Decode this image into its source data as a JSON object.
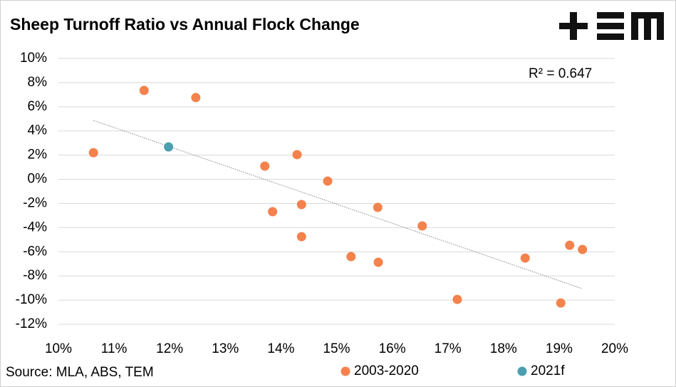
{
  "chart_data": {
    "type": "scatter",
    "title": "Sheep Turnoff Ratio vs Annual Flock Change",
    "source": "Source: MLA, ABS, TEM",
    "annotation": "R² = 0.647",
    "series": [
      {
        "name": "2003-2020",
        "color": "#f4824c",
        "x": [
          10.63,
          11.54,
          12.47,
          13.71,
          14.29,
          14.84,
          13.85,
          14.37,
          14.37,
          15.74,
          16.54,
          15.26,
          15.75,
          17.17,
          18.39,
          19.19,
          19.42,
          19.03
        ],
        "values": [
          2.2,
          7.35,
          6.76,
          1.09,
          2.04,
          -0.15,
          -2.68,
          -2.09,
          -4.75,
          -2.33,
          -3.86,
          -6.4,
          -6.87,
          -9.94,
          -6.52,
          -5.46,
          -5.81,
          -10.24
        ]
      },
      {
        "name": "2021f",
        "color": "#4b9fae",
        "x": [
          11.98
        ],
        "values": [
          2.68
        ]
      }
    ],
    "trendline": {
      "x": [
        10.63,
        19.42
      ],
      "y": [
        4.87,
        -9.06
      ],
      "color": "#888888"
    },
    "xlim": [
      10,
      20
    ],
    "xticks": [
      {
        "value": 10,
        "label": "10%"
      },
      {
        "value": 11,
        "label": "11%"
      },
      {
        "value": 12,
        "label": "12%"
      },
      {
        "value": 13,
        "label": "13%"
      },
      {
        "value": 14,
        "label": "14%"
      },
      {
        "value": 15,
        "label": "15%"
      },
      {
        "value": 16,
        "label": "16%"
      },
      {
        "value": 17,
        "label": "17%"
      },
      {
        "value": 18,
        "label": "18%"
      },
      {
        "value": 19,
        "label": "19%"
      },
      {
        "value": 20,
        "label": "20%"
      }
    ],
    "ylim": [
      -12,
      10
    ],
    "yticks": [
      {
        "value": -12,
        "label": "-12%"
      },
      {
        "value": -10,
        "label": "-10%"
      },
      {
        "value": -8,
        "label": "-8%"
      },
      {
        "value": -6,
        "label": "-6%"
      },
      {
        "value": -4,
        "label": "-4%"
      },
      {
        "value": -2,
        "label": "-2%"
      },
      {
        "value": 0,
        "label": "0%"
      },
      {
        "value": 2,
        "label": "2%"
      },
      {
        "value": 4,
        "label": "4%"
      },
      {
        "value": 6,
        "label": "6%"
      },
      {
        "value": 8,
        "label": "8%"
      },
      {
        "value": 10,
        "label": "10%"
      }
    ],
    "grid": true
  }
}
